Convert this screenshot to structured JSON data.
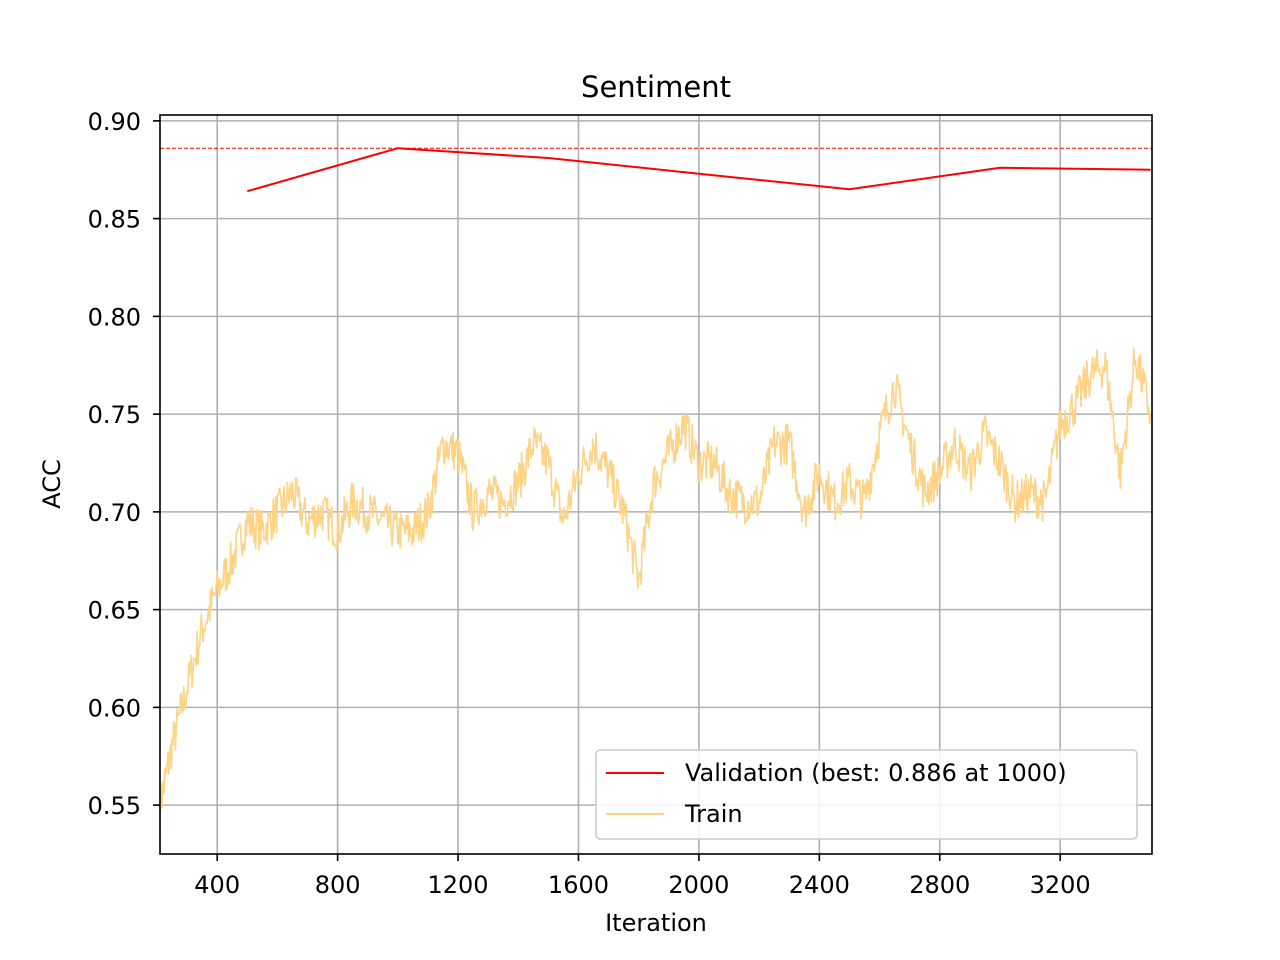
{
  "chart_data": {
    "type": "line",
    "title": "Sentiment",
    "xlabel": "Iteration",
    "ylabel": "ACC",
    "xlim": [
      210,
      3505
    ],
    "ylim": [
      0.525,
      0.903
    ],
    "xticks": [
      400,
      800,
      1200,
      1600,
      2000,
      2400,
      2800,
      3200
    ],
    "xtick_labels": [
      "400",
      "800",
      "1200",
      "1600",
      "2000",
      "2400",
      "2800",
      "3200"
    ],
    "yticks": [
      0.55,
      0.6,
      0.65,
      0.7,
      0.75,
      0.8,
      0.85,
      0.9
    ],
    "ytick_labels": [
      "0.55",
      "0.60",
      "0.65",
      "0.70",
      "0.75",
      "0.80",
      "0.85",
      "0.90"
    ],
    "grid": true,
    "legend_position": "lower-right",
    "best_line": {
      "y": 0.886,
      "color": "#ff0000",
      "style": "dashed"
    },
    "series": [
      {
        "name": "Validation (best: 0.886 at 1000)",
        "color": "#ff0000",
        "x": [
          500,
          1000,
          1500,
          2000,
          2500,
          3000,
          3500
        ],
        "y": [
          0.864,
          0.886,
          0.881,
          0.873,
          0.865,
          0.876,
          0.875
        ]
      },
      {
        "name": "Train",
        "color": "#fdd386",
        "x": [
          210,
          250,
          300,
          350,
          400,
          450,
          500,
          550,
          600,
          650,
          700,
          750,
          800,
          850,
          900,
          950,
          1000,
          1050,
          1100,
          1150,
          1200,
          1250,
          1300,
          1350,
          1400,
          1450,
          1500,
          1550,
          1600,
          1650,
          1700,
          1750,
          1800,
          1850,
          1900,
          1950,
          2000,
          2050,
          2100,
          2150,
          2200,
          2250,
          2300,
          2350,
          2400,
          2450,
          2500,
          2550,
          2600,
          2650,
          2700,
          2750,
          2800,
          2850,
          2900,
          2950,
          3000,
          3050,
          3100,
          3150,
          3200,
          3250,
          3300,
          3350,
          3400,
          3450,
          3500
        ],
        "y": [
          0.55,
          0.58,
          0.61,
          0.64,
          0.66,
          0.675,
          0.695,
          0.69,
          0.7,
          0.71,
          0.695,
          0.7,
          0.69,
          0.705,
          0.7,
          0.695,
          0.69,
          0.69,
          0.7,
          0.735,
          0.73,
          0.7,
          0.71,
          0.705,
          0.715,
          0.735,
          0.725,
          0.695,
          0.72,
          0.735,
          0.72,
          0.7,
          0.665,
          0.715,
          0.73,
          0.745,
          0.725,
          0.725,
          0.71,
          0.705,
          0.705,
          0.735,
          0.735,
          0.7,
          0.72,
          0.705,
          0.715,
          0.705,
          0.74,
          0.765,
          0.735,
          0.71,
          0.72,
          0.735,
          0.72,
          0.74,
          0.725,
          0.705,
          0.71,
          0.705,
          0.745,
          0.755,
          0.77,
          0.775,
          0.72,
          0.78,
          0.75
        ]
      }
    ]
  }
}
